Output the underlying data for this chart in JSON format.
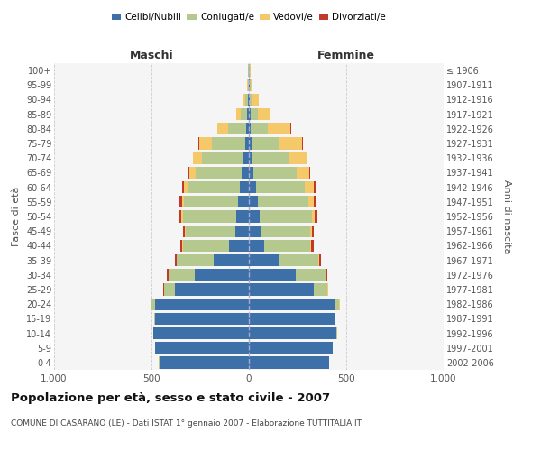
{
  "age_groups": [
    "0-4",
    "5-9",
    "10-14",
    "15-19",
    "20-24",
    "25-29",
    "30-34",
    "35-39",
    "40-44",
    "45-49",
    "50-54",
    "55-59",
    "60-64",
    "65-69",
    "70-74",
    "75-79",
    "80-84",
    "85-89",
    "90-94",
    "95-99",
    "100+"
  ],
  "birth_years": [
    "2002-2006",
    "1997-2001",
    "1992-1996",
    "1987-1991",
    "1982-1986",
    "1977-1981",
    "1972-1976",
    "1967-1971",
    "1962-1966",
    "1957-1961",
    "1952-1956",
    "1947-1951",
    "1942-1946",
    "1937-1941",
    "1932-1936",
    "1927-1931",
    "1922-1926",
    "1917-1921",
    "1912-1916",
    "1907-1911",
    "≤ 1906"
  ],
  "males": {
    "celibi": [
      460,
      480,
      490,
      480,
      480,
      380,
      280,
      180,
      100,
      70,
      65,
      55,
      45,
      35,
      30,
      20,
      15,
      8,
      5,
      2,
      2
    ],
    "coniugati": [
      1,
      1,
      2,
      5,
      20,
      55,
      130,
      190,
      240,
      255,
      275,
      280,
      270,
      240,
      210,
      170,
      90,
      35,
      15,
      3,
      2
    ],
    "vedovi": [
      0,
      0,
      0,
      0,
      1,
      1,
      1,
      2,
      2,
      3,
      5,
      8,
      20,
      30,
      45,
      65,
      55,
      20,
      8,
      2,
      0
    ],
    "divorziati": [
      0,
      0,
      0,
      0,
      2,
      3,
      8,
      8,
      12,
      10,
      12,
      12,
      8,
      5,
      4,
      3,
      3,
      2,
      0,
      0,
      0
    ]
  },
  "females": {
    "nubili": [
      410,
      430,
      450,
      440,
      445,
      335,
      240,
      155,
      80,
      60,
      55,
      45,
      35,
      25,
      20,
      15,
      10,
      10,
      5,
      3,
      2
    ],
    "coniugate": [
      0,
      1,
      2,
      5,
      20,
      70,
      155,
      200,
      235,
      255,
      270,
      260,
      250,
      220,
      185,
      140,
      85,
      35,
      15,
      4,
      2
    ],
    "vedove": [
      0,
      0,
      0,
      0,
      1,
      1,
      2,
      4,
      5,
      8,
      15,
      30,
      50,
      65,
      90,
      120,
      120,
      65,
      30,
      8,
      3
    ],
    "divorziate": [
      0,
      0,
      0,
      0,
      1,
      2,
      8,
      10,
      12,
      10,
      12,
      12,
      10,
      6,
      5,
      4,
      3,
      2,
      1,
      0,
      0
    ]
  },
  "color_celibi": "#3d6fa8",
  "color_coniugati": "#b5c98e",
  "color_vedovi": "#f5c86a",
  "color_divorziati": "#c0392b",
  "xlim": 1000,
  "title": "Popolazione per età, sesso e stato civile - 2007",
  "subtitle": "COMUNE DI CASARANO (LE) - Dati ISTAT 1° gennaio 2007 - Elaborazione TUTTITALIA.IT",
  "xlabel_left": "Maschi",
  "xlabel_right": "Femmine",
  "ylabel_left": "Fasce di età",
  "ylabel_right": "Anni di nascita",
  "bg_color": "#f5f5f5",
  "grid_color": "#cccccc"
}
